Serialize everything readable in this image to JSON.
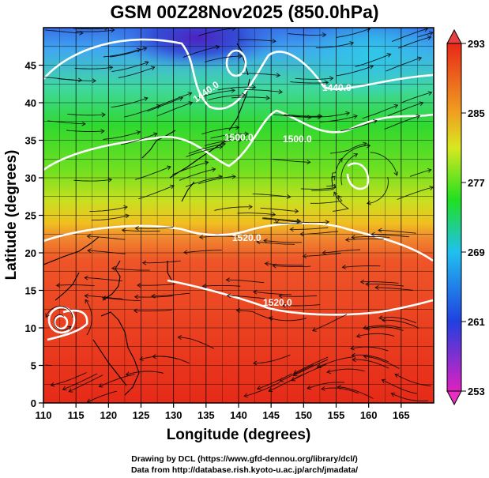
{
  "title": "GSM 00Z28Nov2025 (850.0hPa)",
  "x_axis": {
    "label": "Longitude (degrees)",
    "range": [
      110,
      170
    ],
    "ticks": [
      "110",
      "115",
      "120",
      "125",
      "130",
      "135",
      "140",
      "145",
      "150",
      "155",
      "160",
      "165"
    ],
    "tick_values": [
      110,
      115,
      120,
      125,
      130,
      135,
      140,
      145,
      150,
      155,
      160,
      165
    ]
  },
  "y_axis": {
    "label": "Latitude (degrees)",
    "range": [
      0,
      50
    ],
    "ticks": [
      "0",
      "5",
      "10",
      "15",
      "20",
      "25",
      "30",
      "35",
      "40",
      "45"
    ],
    "tick_values": [
      0,
      5,
      10,
      15,
      20,
      25,
      30,
      35,
      40,
      45
    ]
  },
  "colorbar": {
    "range": [
      253,
      293
    ],
    "ticks": [
      "293",
      "285",
      "277",
      "269",
      "261",
      "253"
    ],
    "tick_values": [
      293,
      285,
      277,
      269,
      261,
      253
    ],
    "stops": [
      "#e020c0",
      "#2040e0",
      "#20c0f0",
      "#20e020",
      "#f0f020",
      "#f08020",
      "#e82818"
    ]
  },
  "contour_labels": [
    "1440.0",
    "1500.0",
    "1520.0",
    "1520.0",
    "1440.0",
    "1500.0"
  ],
  "credits": [
    "Drawing by DCL (https://www.gfd-dennou.org/library/dcl/)",
    "Data from http://database.rish.kyoto-u.ac.jp/arch/jmadata/"
  ]
}
